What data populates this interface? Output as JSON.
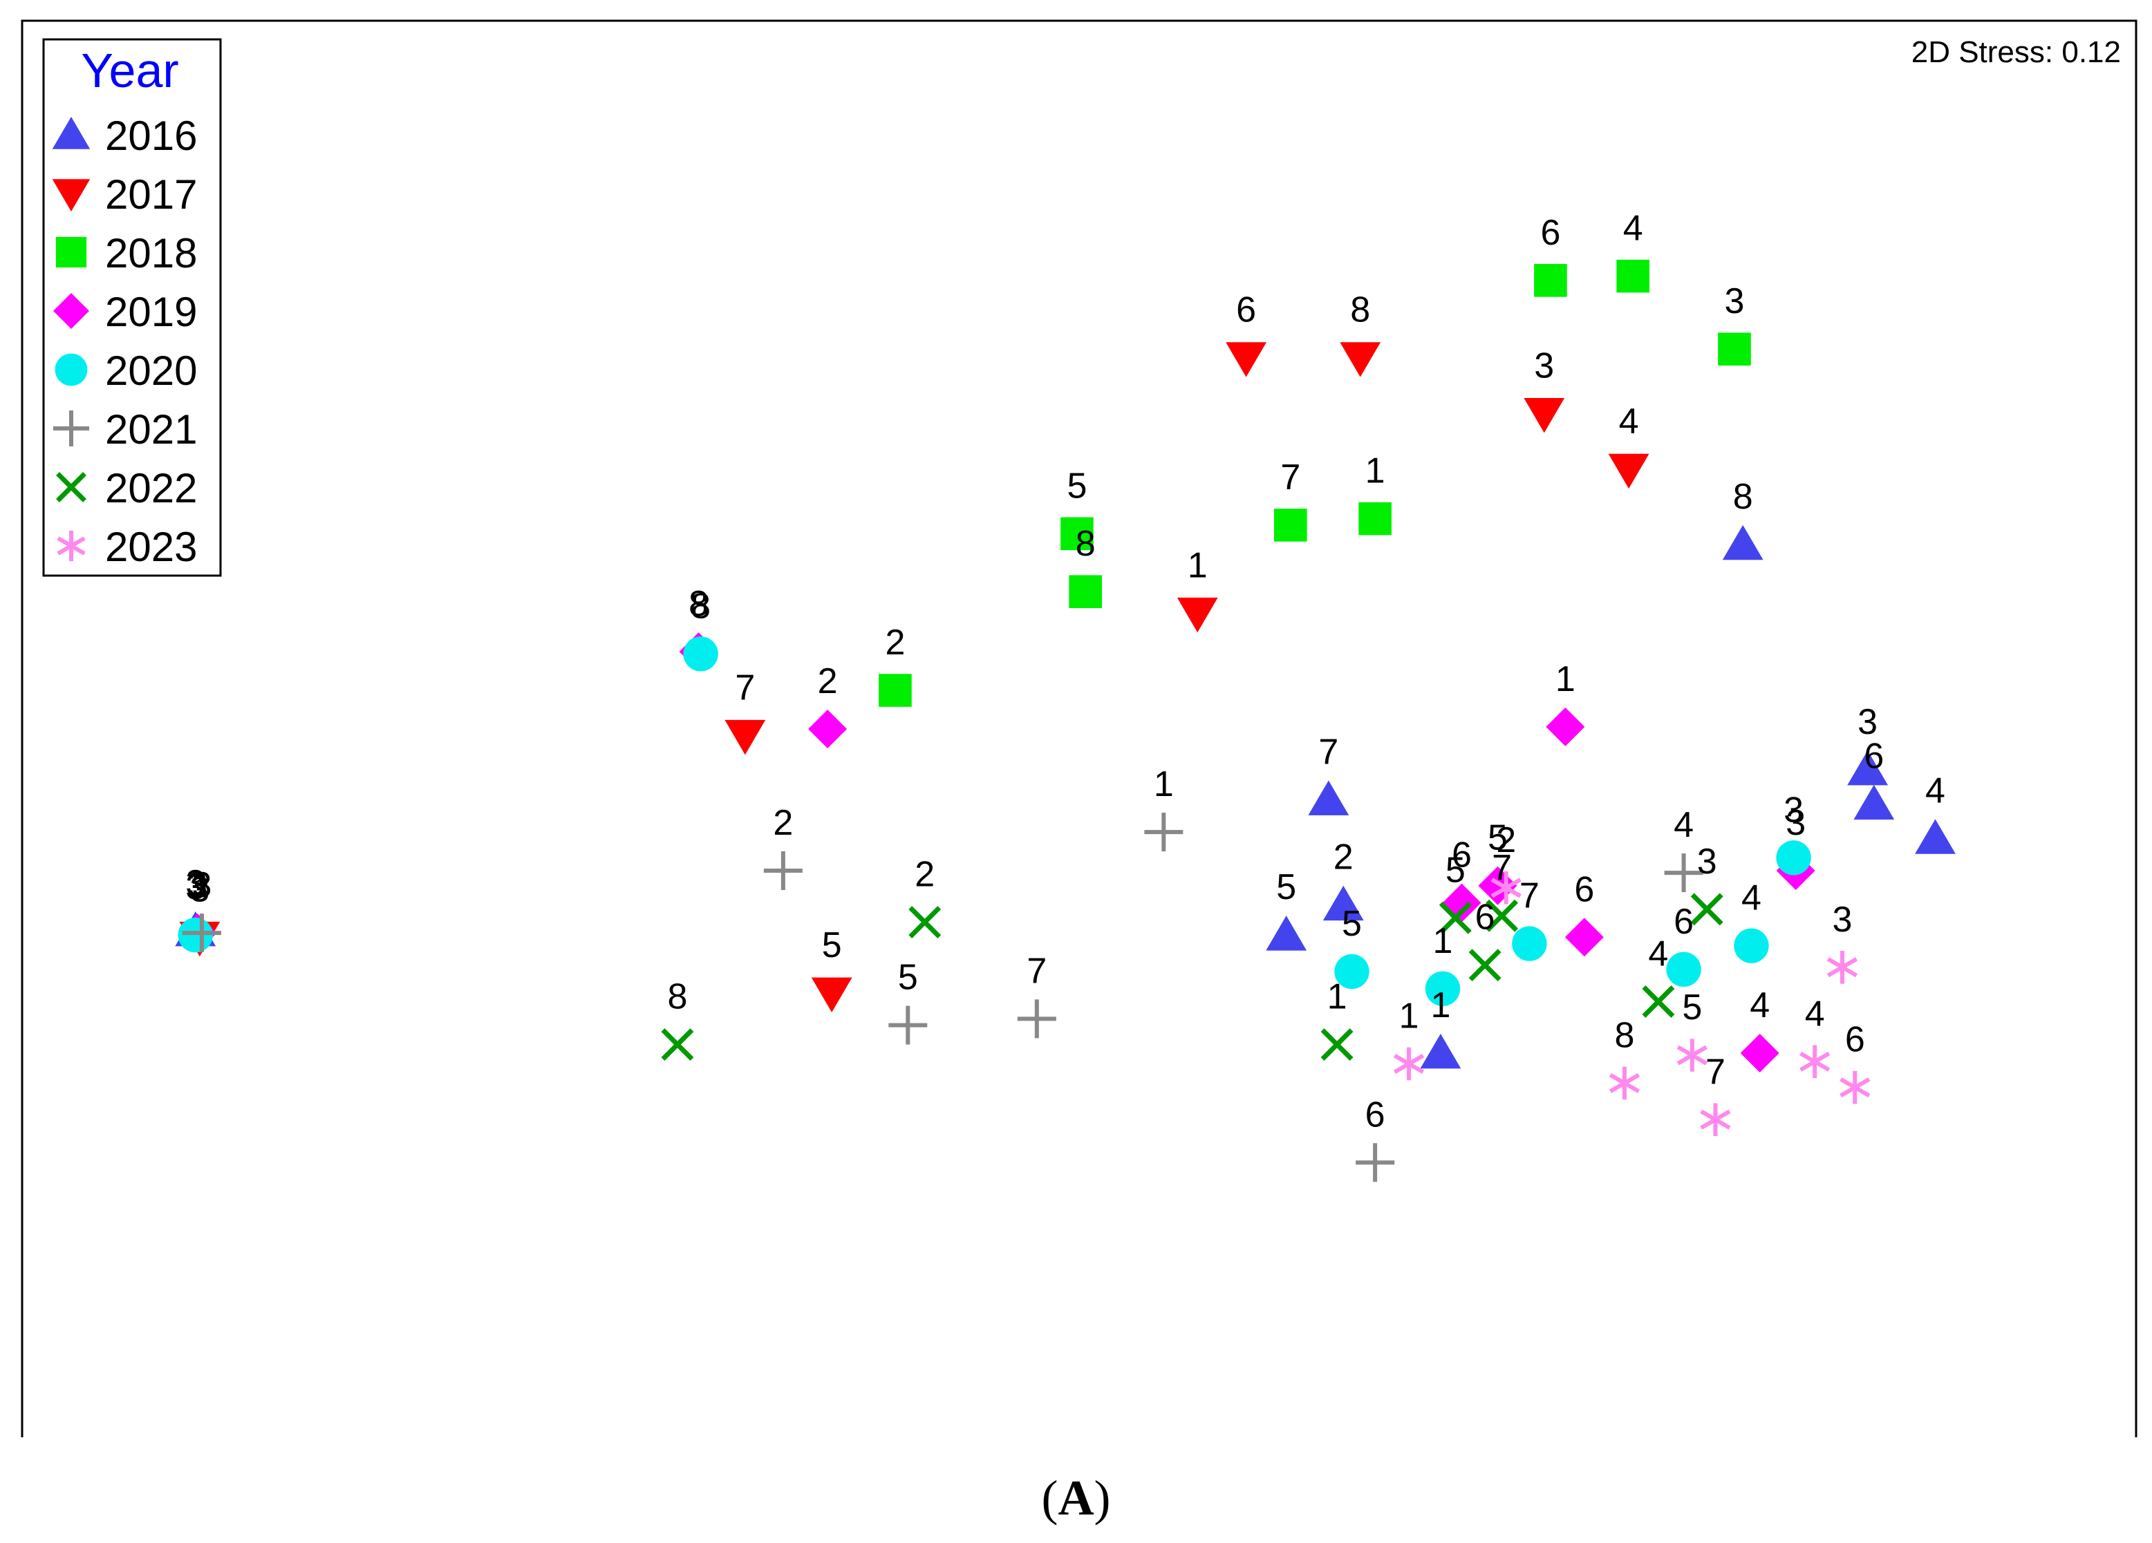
{
  "caption": {
    "open": "(",
    "label": "A",
    "close": ")"
  },
  "chart_data": {
    "type": "scatter",
    "title": "",
    "xlabel": "",
    "ylabel": "",
    "annotation": "2D Stress: 0.12",
    "axes_visible": false,
    "grid": false,
    "xlim": [
      0,
      100
    ],
    "ylim": [
      0,
      66
    ],
    "legend": {
      "title": "Year",
      "title_color": "#0000ff",
      "position": "top-left"
    },
    "series": [
      {
        "name": "2016",
        "marker": "triangle-up",
        "color": "#4444ee",
        "points": [
          {
            "label": "3",
            "x": 8.2,
            "y": 23.6
          },
          {
            "label": "8",
            "x": 81.4,
            "y": 41.6
          },
          {
            "label": "3",
            "x": 87.3,
            "y": 31.1
          },
          {
            "label": "6",
            "x": 87.6,
            "y": 29.5
          },
          {
            "label": "4",
            "x": 90.5,
            "y": 27.9
          },
          {
            "label": "7",
            "x": 61.8,
            "y": 29.7
          },
          {
            "label": "2",
            "x": 62.5,
            "y": 24.8
          },
          {
            "label": "5",
            "x": 59.8,
            "y": 23.4
          },
          {
            "label": "1",
            "x": 67.1,
            "y": 17.9
          }
        ]
      },
      {
        "name": "2017",
        "marker": "triangle-down",
        "color": "#ff0000",
        "points": [
          {
            "label": "3",
            "x": 8.4,
            "y": 23.3
          },
          {
            "label": "6",
            "x": 57.9,
            "y": 50.3
          },
          {
            "label": "8",
            "x": 63.3,
            "y": 50.3
          },
          {
            "label": "3",
            "x": 72.0,
            "y": 47.7
          },
          {
            "label": "4",
            "x": 76.0,
            "y": 45.1
          },
          {
            "label": "1",
            "x": 55.6,
            "y": 38.4
          },
          {
            "label": "7",
            "x": 34.2,
            "y": 32.7
          },
          {
            "label": "5",
            "x": 38.3,
            "y": 20.7
          }
        ]
      },
      {
        "name": "2018",
        "marker": "square",
        "color": "#00ee00",
        "points": [
          {
            "label": "6",
            "x": 72.3,
            "y": 53.9
          },
          {
            "label": "4",
            "x": 76.2,
            "y": 54.1
          },
          {
            "label": "3",
            "x": 81.0,
            "y": 50.7
          },
          {
            "label": "7",
            "x": 60.0,
            "y": 42.5
          },
          {
            "label": "1",
            "x": 64.0,
            "y": 42.8
          },
          {
            "label": "5",
            "x": 49.9,
            "y": 42.1
          },
          {
            "label": "8",
            "x": 50.3,
            "y": 39.4
          },
          {
            "label": "2",
            "x": 41.3,
            "y": 34.8
          }
        ]
      },
      {
        "name": "2019",
        "marker": "diamond",
        "color": "#ff00ff",
        "points": [
          {
            "label": "3",
            "x": 8.3,
            "y": 23.5
          },
          {
            "label": "8",
            "x": 32.0,
            "y": 36.6
          },
          {
            "label": "2",
            "x": 38.1,
            "y": 33.0
          },
          {
            "label": "1",
            "x": 73.0,
            "y": 33.1
          },
          {
            "label": "6",
            "x": 68.1,
            "y": 24.9
          },
          {
            "label": "5",
            "x": 69.8,
            "y": 25.7
          },
          {
            "label": "3",
            "x": 83.9,
            "y": 26.4
          },
          {
            "label": "6",
            "x": 73.9,
            "y": 23.3
          },
          {
            "label": "4",
            "x": 82.2,
            "y": 17.9
          }
        ]
      },
      {
        "name": "2020",
        "marker": "circle",
        "color": "#00eeee",
        "points": [
          {
            "label": "3",
            "x": 8.2,
            "y": 23.4
          },
          {
            "label": "8",
            "x": 32.1,
            "y": 36.5
          },
          {
            "label": "5",
            "x": 62.9,
            "y": 21.7
          },
          {
            "label": "1",
            "x": 67.2,
            "y": 20.9
          },
          {
            "label": "7",
            "x": 71.3,
            "y": 23.0
          },
          {
            "label": "3",
            "x": 83.8,
            "y": 27.0
          },
          {
            "label": "4",
            "x": 81.8,
            "y": 22.9
          },
          {
            "label": "6",
            "x": 78.6,
            "y": 21.8
          }
        ]
      },
      {
        "name": "2021",
        "marker": "plus",
        "color": "#888888",
        "points": [
          {
            "label": "3",
            "x": 8.5,
            "y": 23.5
          },
          {
            "label": "1",
            "x": 54.0,
            "y": 28.2
          },
          {
            "label": "2",
            "x": 36.0,
            "y": 26.4
          },
          {
            "label": "4",
            "x": 78.6,
            "y": 26.3
          },
          {
            "label": "5",
            "x": 41.9,
            "y": 19.2
          },
          {
            "label": "7",
            "x": 48.0,
            "y": 19.5
          },
          {
            "label": "6",
            "x": 64.0,
            "y": 12.8
          }
        ]
      },
      {
        "name": "2022",
        "marker": "x",
        "color": "#009900",
        "points": [
          {
            "label": "2",
            "x": 42.7,
            "y": 24.0
          },
          {
            "label": "8",
            "x": 31.0,
            "y": 18.3
          },
          {
            "label": "5",
            "x": 67.8,
            "y": 24.2
          },
          {
            "label": "7",
            "x": 70.0,
            "y": 24.3
          },
          {
            "label": "6",
            "x": 69.2,
            "y": 22.0
          },
          {
            "label": "3",
            "x": 79.7,
            "y": 24.6
          },
          {
            "label": "4",
            "x": 77.4,
            "y": 20.3
          },
          {
            "label": "1",
            "x": 62.2,
            "y": 18.3
          }
        ]
      },
      {
        "name": "2023",
        "marker": "asterisk",
        "color": "#ff88ee",
        "points": [
          {
            "label": "2",
            "x": 70.2,
            "y": 25.6
          },
          {
            "label": "3",
            "x": 86.1,
            "y": 21.9
          },
          {
            "label": "1",
            "x": 65.6,
            "y": 17.4
          },
          {
            "label": "5",
            "x": 79.0,
            "y": 17.8
          },
          {
            "label": "4",
            "x": 84.8,
            "y": 17.5
          },
          {
            "label": "8",
            "x": 75.8,
            "y": 16.5
          },
          {
            "label": "6",
            "x": 86.7,
            "y": 16.3
          },
          {
            "label": "7",
            "x": 80.1,
            "y": 14.8
          }
        ]
      }
    ]
  }
}
